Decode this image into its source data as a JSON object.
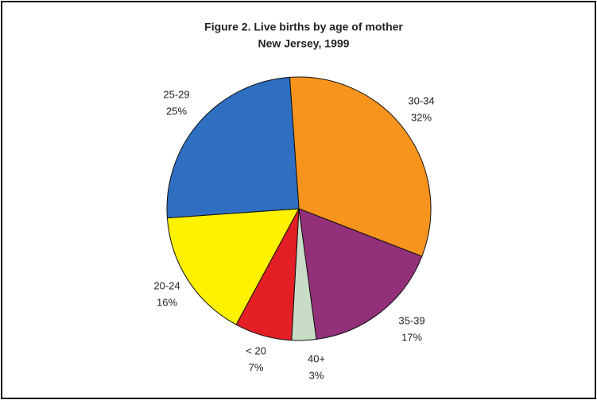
{
  "chart_data": {
    "type": "pie",
    "title": "Figure 2.  Live births by age of mother",
    "subtitle": "New Jersey, 1999",
    "categories": [
      "30-34",
      "35-39",
      "40+",
      "< 20",
      "20-24",
      "25-29"
    ],
    "values": [
      32,
      17,
      3,
      7,
      16,
      25
    ],
    "value_labels": [
      "32%",
      "17%",
      "3%",
      "7%",
      "16%",
      "25%"
    ],
    "colors": [
      "#f7941d",
      "#93307a",
      "#c9dcc6",
      "#e31e24",
      "#fff200",
      "#2e6fc1"
    ]
  }
}
